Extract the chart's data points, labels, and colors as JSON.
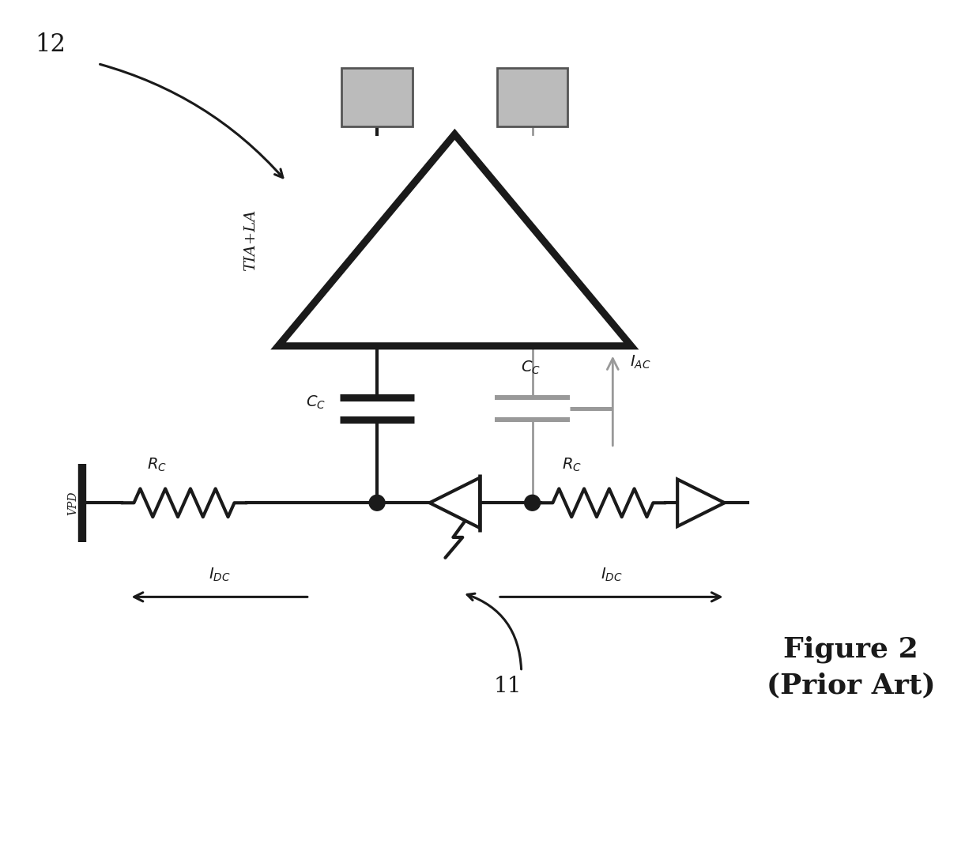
{
  "fig_width": 12.4,
  "fig_height": 10.87,
  "bg_color": "#ffffff",
  "title_line1": "Figure 2",
  "title_line2": "(Prior Art)",
  "label_12": "12",
  "label_11": "11",
  "label_TIA_LA": "TIA+LA",
  "label_Cc_left": "C",
  "label_Cc_right": "C",
  "label_Rc_left": "R",
  "label_Rc_right": "R",
  "label_VPD": "VPD",
  "label_IDC_left": "I",
  "label_IDC_right": "I",
  "label_IAC": "I",
  "sub_C": "C",
  "sub_DC": "DC",
  "sub_AC": "AC",
  "sub_R": "C"
}
